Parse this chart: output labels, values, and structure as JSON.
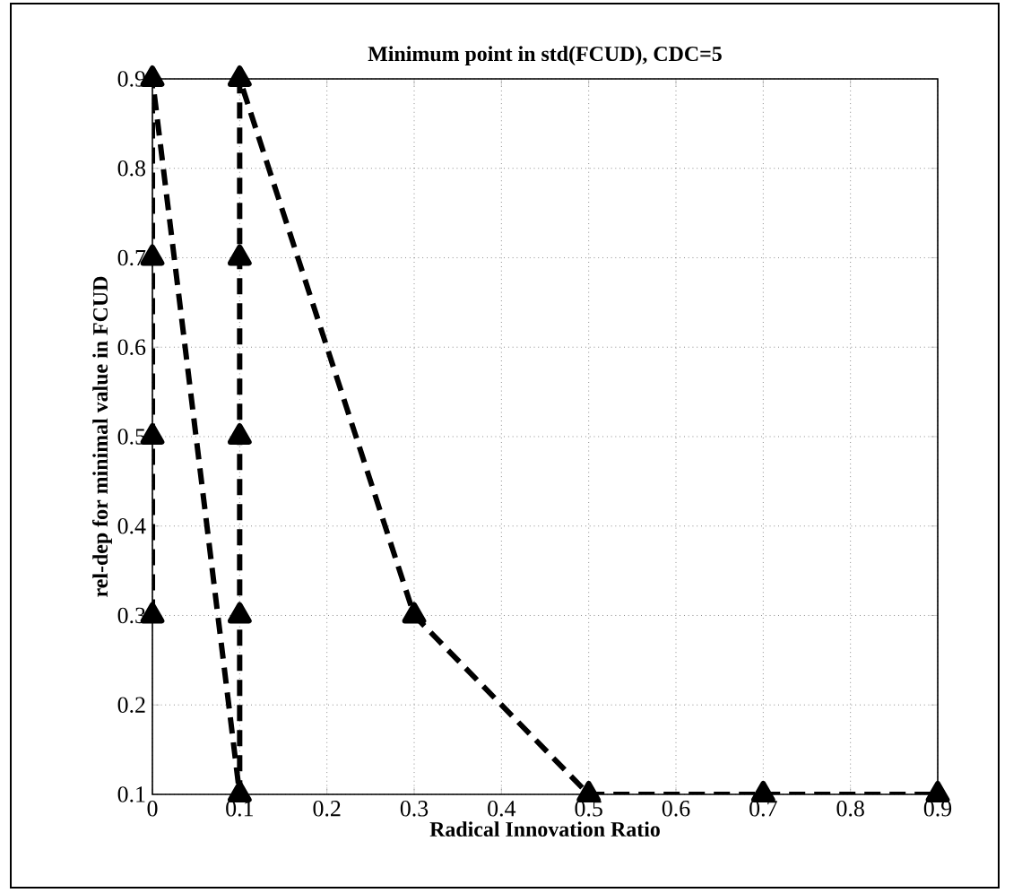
{
  "chart_data": {
    "type": "line",
    "title": "Minimum point in std(FCUD), CDC=5",
    "xlabel": "Radical Innovation Ratio",
    "ylabel": "rel-dep for minimal value in FCUD",
    "x": [
      0,
      0,
      0,
      0,
      0.1,
      0.1,
      0.1,
      0.1,
      0.1,
      0.3,
      0.5,
      0.7,
      0.9
    ],
    "series": [
      {
        "color": "#000000",
        "values": [
          0.3,
          0.5,
          0.7,
          0.9,
          0.1,
          0.3,
          0.5,
          0.7,
          0.9,
          0.3,
          0.1,
          0.1,
          0.1
        ]
      }
    ],
    "xlim": [
      0,
      0.9
    ],
    "ylim": [
      0.1,
      0.9
    ],
    "xticks": [
      0,
      0.1,
      0.2,
      0.3,
      0.4,
      0.5,
      0.6,
      0.7,
      0.8,
      0.9
    ],
    "yticks": [
      0.1,
      0.2,
      0.3,
      0.4,
      0.5,
      0.6,
      0.7,
      0.8,
      0.9
    ],
    "grid": true,
    "marker": "triangle",
    "line_style": "dashed"
  }
}
